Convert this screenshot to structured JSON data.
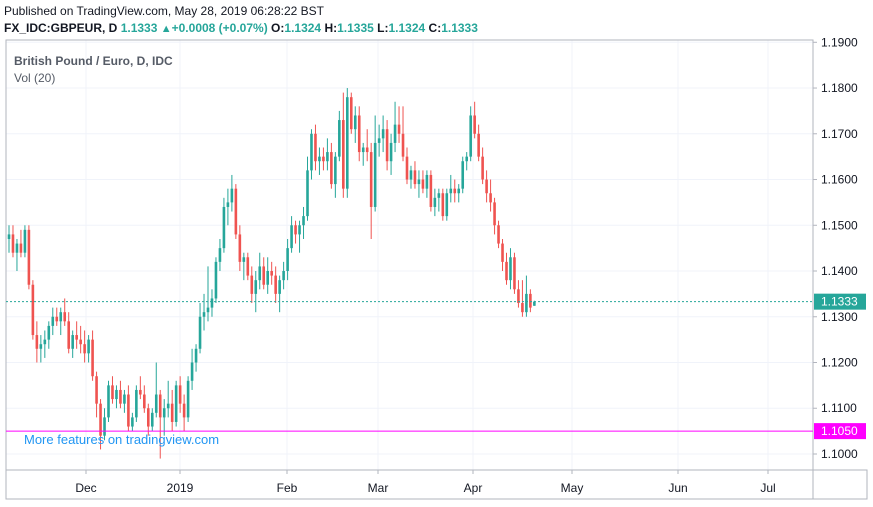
{
  "header": {
    "published": "Published on TradingView.com, May 28, 2019 06:28:22 BST",
    "symbol": "FX_IDC:GBPEUR, D",
    "last": "1.1333",
    "change_arrow": "▲",
    "change": "+0.0008 (+0.07%)",
    "o_label": "O:",
    "o_value": "1.1324",
    "h_label": "H:",
    "h_value": "1.1335",
    "l_label": "L:",
    "l_value": "1.1324",
    "c_label": "C:",
    "c_value": "1.1333"
  },
  "chart_title": "British Pound / Euro, D, IDC",
  "volume_label": "Vol (20)",
  "watermark": "More features on tradingview.com",
  "colors": {
    "up": "#26a69a",
    "down": "#ef5350",
    "price_line": "#26a69a",
    "support_line": "#ff00ff",
    "watermark": "#2196f3",
    "grid": "#f0f3fa",
    "axis_text": "#131722"
  },
  "chart_data": {
    "type": "candlestick",
    "x_ticks": [
      "Dec",
      "2019",
      "Feb",
      "Mar",
      "Apr",
      "May",
      "Jun",
      "Jul"
    ],
    "y_ticks": [
      "1.1900",
      "1.1800",
      "1.1700",
      "1.1600",
      "1.1500",
      "1.1400",
      "1.1300",
      "1.1200",
      "1.1100",
      "1.1000"
    ],
    "ylim": [
      1.0965,
      1.1905
    ],
    "current_price": 1.1333,
    "current_price_label": "1.1333",
    "horizontal_line": 1.105,
    "horizontal_line_label": "1.1050",
    "candles": [
      [
        1.147,
        1.15,
        1.144,
        1.148
      ],
      [
        1.148,
        1.15,
        1.143,
        1.144
      ],
      [
        1.144,
        1.147,
        1.14,
        1.146
      ],
      [
        1.146,
        1.149,
        1.143,
        1.144
      ],
      [
        1.144,
        1.15,
        1.143,
        1.149
      ],
      [
        1.149,
        1.15,
        1.136,
        1.137
      ],
      [
        1.137,
        1.138,
        1.125,
        1.126
      ],
      [
        1.126,
        1.129,
        1.12,
        1.123
      ],
      [
        1.123,
        1.126,
        1.12,
        1.124
      ],
      [
        1.124,
        1.127,
        1.121,
        1.125
      ],
      [
        1.125,
        1.129,
        1.123,
        1.128
      ],
      [
        1.128,
        1.132,
        1.126,
        1.13
      ],
      [
        1.13,
        1.132,
        1.128,
        1.129
      ],
      [
        1.129,
        1.132,
        1.126,
        1.131
      ],
      [
        1.131,
        1.134,
        1.128,
        1.129
      ],
      [
        1.129,
        1.131,
        1.122,
        1.123
      ],
      [
        1.123,
        1.127,
        1.121,
        1.126
      ],
      [
        1.126,
        1.129,
        1.123,
        1.125
      ],
      [
        1.125,
        1.128,
        1.122,
        1.124
      ],
      [
        1.124,
        1.127,
        1.12,
        1.122
      ],
      [
        1.122,
        1.126,
        1.12,
        1.125
      ],
      [
        1.125,
        1.127,
        1.116,
        1.117
      ],
      [
        1.117,
        1.118,
        1.108,
        1.111
      ],
      [
        1.111,
        1.112,
        1.101,
        1.104
      ],
      [
        1.104,
        1.11,
        1.103,
        1.108
      ],
      [
        1.108,
        1.116,
        1.107,
        1.115
      ],
      [
        1.115,
        1.117,
        1.111,
        1.112
      ],
      [
        1.112,
        1.115,
        1.11,
        1.114
      ],
      [
        1.114,
        1.116,
        1.11,
        1.111
      ],
      [
        1.111,
        1.114,
        1.109,
        1.113
      ],
      [
        1.113,
        1.115,
        1.105,
        1.106
      ],
      [
        1.106,
        1.109,
        1.105,
        1.108
      ],
      [
        1.108,
        1.115,
        1.107,
        1.114
      ],
      [
        1.114,
        1.117,
        1.112,
        1.113
      ],
      [
        1.113,
        1.115,
        1.109,
        1.11
      ],
      [
        1.11,
        1.111,
        1.104,
        1.106
      ],
      [
        1.106,
        1.11,
        1.105,
        1.109
      ],
      [
        1.109,
        1.12,
        1.108,
        1.113
      ],
      [
        1.113,
        1.114,
        1.099,
        1.108
      ],
      [
        1.108,
        1.112,
        1.104,
        1.11
      ],
      [
        1.11,
        1.116,
        1.108,
        1.111
      ],
      [
        1.111,
        1.114,
        1.105,
        1.107
      ],
      [
        1.107,
        1.116,
        1.106,
        1.115
      ],
      [
        1.115,
        1.117,
        1.109,
        1.111
      ],
      [
        1.111,
        1.113,
        1.105,
        1.108
      ],
      [
        1.108,
        1.117,
        1.107,
        1.116
      ],
      [
        1.116,
        1.123,
        1.114,
        1.12
      ],
      [
        1.12,
        1.124,
        1.118,
        1.123
      ],
      [
        1.123,
        1.133,
        1.122,
        1.13
      ],
      [
        1.13,
        1.135,
        1.127,
        1.131
      ],
      [
        1.131,
        1.141,
        1.129,
        1.132
      ],
      [
        1.132,
        1.136,
        1.13,
        1.134
      ],
      [
        1.134,
        1.143,
        1.133,
        1.142
      ],
      [
        1.142,
        1.147,
        1.14,
        1.145
      ],
      [
        1.145,
        1.156,
        1.144,
        1.154
      ],
      [
        1.154,
        1.158,
        1.15,
        1.155
      ],
      [
        1.155,
        1.161,
        1.153,
        1.158
      ],
      [
        1.158,
        1.159,
        1.147,
        1.148
      ],
      [
        1.148,
        1.15,
        1.14,
        1.142
      ],
      [
        1.142,
        1.144,
        1.138,
        1.143
      ],
      [
        1.143,
        1.144,
        1.138,
        1.139
      ],
      [
        1.139,
        1.141,
        1.133,
        1.135
      ],
      [
        1.135,
        1.14,
        1.131,
        1.138
      ],
      [
        1.138,
        1.144,
        1.136,
        1.141
      ],
      [
        1.141,
        1.143,
        1.136,
        1.137
      ],
      [
        1.137,
        1.143,
        1.135,
        1.14
      ],
      [
        1.14,
        1.142,
        1.137,
        1.139
      ],
      [
        1.139,
        1.141,
        1.133,
        1.135
      ],
      [
        1.135,
        1.139,
        1.131,
        1.138
      ],
      [
        1.138,
        1.142,
        1.136,
        1.14
      ],
      [
        1.14,
        1.147,
        1.138,
        1.145
      ],
      [
        1.145,
        1.152,
        1.144,
        1.15
      ],
      [
        1.15,
        1.151,
        1.146,
        1.148
      ],
      [
        1.148,
        1.151,
        1.144,
        1.15
      ],
      [
        1.15,
        1.154,
        1.147,
        1.152
      ],
      [
        1.152,
        1.165,
        1.151,
        1.162
      ],
      [
        1.162,
        1.171,
        1.16,
        1.17
      ],
      [
        1.17,
        1.172,
        1.162,
        1.164
      ],
      [
        1.164,
        1.167,
        1.161,
        1.165
      ],
      [
        1.165,
        1.167,
        1.162,
        1.164
      ],
      [
        1.164,
        1.169,
        1.162,
        1.166
      ],
      [
        1.166,
        1.168,
        1.158,
        1.159
      ],
      [
        1.159,
        1.166,
        1.156,
        1.165
      ],
      [
        1.165,
        1.175,
        1.164,
        1.173
      ],
      [
        1.173,
        1.179,
        1.156,
        1.158
      ],
      [
        1.158,
        1.18,
        1.156,
        1.178
      ],
      [
        1.178,
        1.179,
        1.17,
        1.171
      ],
      [
        1.171,
        1.176,
        1.168,
        1.174
      ],
      [
        1.174,
        1.176,
        1.164,
        1.166
      ],
      [
        1.166,
        1.168,
        1.163,
        1.167
      ],
      [
        1.167,
        1.171,
        1.164,
        1.166
      ],
      [
        1.166,
        1.168,
        1.147,
        1.154
      ],
      [
        1.154,
        1.174,
        1.153,
        1.168
      ],
      [
        1.168,
        1.172,
        1.165,
        1.169
      ],
      [
        1.169,
        1.174,
        1.166,
        1.171
      ],
      [
        1.171,
        1.173,
        1.162,
        1.164
      ],
      [
        1.164,
        1.17,
        1.161,
        1.168
      ],
      [
        1.168,
        1.177,
        1.166,
        1.172
      ],
      [
        1.172,
        1.176,
        1.168,
        1.17
      ],
      [
        1.17,
        1.176,
        1.164,
        1.165
      ],
      [
        1.165,
        1.167,
        1.159,
        1.16
      ],
      [
        1.16,
        1.163,
        1.158,
        1.162
      ],
      [
        1.162,
        1.164,
        1.158,
        1.159
      ],
      [
        1.159,
        1.162,
        1.156,
        1.16
      ],
      [
        1.16,
        1.162,
        1.157,
        1.158
      ],
      [
        1.158,
        1.162,
        1.156,
        1.161
      ],
      [
        1.161,
        1.162,
        1.153,
        1.154
      ],
      [
        1.154,
        1.158,
        1.152,
        1.156
      ],
      [
        1.156,
        1.158,
        1.153,
        1.157
      ],
      [
        1.157,
        1.158,
        1.151,
        1.152
      ],
      [
        1.152,
        1.158,
        1.151,
        1.157
      ],
      [
        1.157,
        1.161,
        1.155,
        1.158
      ],
      [
        1.158,
        1.16,
        1.155,
        1.157
      ],
      [
        1.157,
        1.159,
        1.155,
        1.158
      ],
      [
        1.158,
        1.165,
        1.157,
        1.164
      ],
      [
        1.164,
        1.166,
        1.162,
        1.165
      ],
      [
        1.165,
        1.176,
        1.164,
        1.174
      ],
      [
        1.174,
        1.177,
        1.169,
        1.17
      ],
      [
        1.17,
        1.172,
        1.164,
        1.165
      ],
      [
        1.165,
        1.167,
        1.159,
        1.16
      ],
      [
        1.16,
        1.162,
        1.155,
        1.157
      ],
      [
        1.157,
        1.16,
        1.153,
        1.155
      ],
      [
        1.155,
        1.156,
        1.148,
        1.15
      ],
      [
        1.15,
        1.151,
        1.145,
        1.146
      ],
      [
        1.146,
        1.147,
        1.14,
        1.142
      ],
      [
        1.142,
        1.144,
        1.137,
        1.138
      ],
      [
        1.138,
        1.145,
        1.136,
        1.143
      ],
      [
        1.143,
        1.144,
        1.135,
        1.136
      ],
      [
        1.136,
        1.138,
        1.132,
        1.133
      ],
      [
        1.133,
        1.138,
        1.13,
        1.131
      ],
      [
        1.131,
        1.139,
        1.13,
        1.135
      ],
      [
        1.135,
        1.136,
        1.131,
        1.132
      ],
      [
        1.1324,
        1.1335,
        1.1324,
        1.1333
      ]
    ]
  }
}
